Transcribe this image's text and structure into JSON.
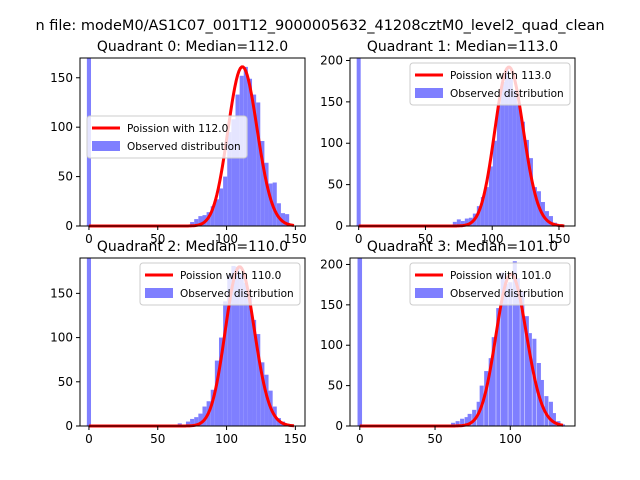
{
  "suptitle": "n file: modeM0/AS1C07_001T12_9000005632_41208cztM0_level2_quad_clean",
  "colors": {
    "poisson": "#ff0000",
    "observed": "#7f7fff",
    "zero_bar": "#8080ff"
  },
  "chart_data": [
    {
      "type": "bar",
      "title": "Quadrant 0: Median=112.0",
      "median": 112,
      "xlim": [
        -6.5,
        157
      ],
      "ylim": [
        0,
        170
      ],
      "xticks": [
        0,
        50,
        100,
        150
      ],
      "yticks": [
        0,
        50,
        100,
        150
      ],
      "legend_loc": "center-left",
      "legend": [
        "Poission with 112.0",
        "Observed distribution"
      ],
      "bin_width": 3,
      "zero_bar": 170,
      "bars": [
        [
          0,
          2
        ],
        [
          54,
          1
        ],
        [
          60,
          1
        ],
        [
          75,
          4
        ],
        [
          78,
          7
        ],
        [
          81,
          10
        ],
        [
          84,
          11
        ],
        [
          87,
          14
        ],
        [
          90,
          20
        ],
        [
          93,
          27
        ],
        [
          96,
          38
        ],
        [
          99,
          50
        ],
        [
          102,
          95
        ],
        [
          105,
          108
        ],
        [
          108,
          133
        ],
        [
          111,
          152
        ],
        [
          114,
          161
        ],
        [
          117,
          149
        ],
        [
          120,
          133
        ],
        [
          123,
          125
        ],
        [
          126,
          86
        ],
        [
          129,
          64
        ],
        [
          132,
          43
        ],
        [
          135,
          44
        ],
        [
          138,
          23
        ],
        [
          141,
          13
        ],
        [
          144,
          12
        ],
        [
          147,
          2
        ]
      ],
      "curve_peak": 161
    },
    {
      "type": "bar",
      "title": "Quadrant 1: Median=113.0",
      "median": 113,
      "xlim": [
        -6.5,
        162
      ],
      "ylim": [
        0,
        203
      ],
      "xticks": [
        0,
        50,
        100,
        150
      ],
      "yticks": [
        0,
        50,
        100,
        150,
        200
      ],
      "legend_loc": "top-right",
      "legend": [
        "Poission with 113.0",
        "Observed distribution"
      ],
      "bin_width": 3,
      "zero_bar": 203,
      "bars": [
        [
          0,
          2
        ],
        [
          57,
          1
        ],
        [
          72,
          5
        ],
        [
          75,
          8
        ],
        [
          78,
          6
        ],
        [
          81,
          9
        ],
        [
          84,
          10
        ],
        [
          87,
          15
        ],
        [
          90,
          24
        ],
        [
          93,
          35
        ],
        [
          96,
          47
        ],
        [
          99,
          72
        ],
        [
          102,
          103
        ],
        [
          105,
          148
        ],
        [
          108,
          174
        ],
        [
          111,
          190
        ],
        [
          114,
          178
        ],
        [
          117,
          164
        ],
        [
          120,
          148
        ],
        [
          123,
          126
        ],
        [
          126,
          104
        ],
        [
          129,
          82
        ],
        [
          132,
          47
        ],
        [
          135,
          42
        ],
        [
          138,
          29
        ],
        [
          141,
          18
        ],
        [
          144,
          12
        ],
        [
          147,
          4
        ]
      ],
      "curve_peak": 192
    },
    {
      "type": "bar",
      "title": "Quadrant 2: Median=110.0",
      "median": 110,
      "xlim": [
        -6.5,
        157
      ],
      "ylim": [
        0,
        190
      ],
      "xticks": [
        0,
        50,
        100,
        150
      ],
      "yticks": [
        0,
        50,
        100,
        150
      ],
      "legend_loc": "top-right",
      "legend": [
        "Poission with 110.0",
        "Observed distribution"
      ],
      "bin_width": 3,
      "zero_bar": 190,
      "bars": [
        [
          0,
          2
        ],
        [
          54,
          1
        ],
        [
          66,
          3
        ],
        [
          72,
          5
        ],
        [
          75,
          8
        ],
        [
          78,
          10
        ],
        [
          81,
          14
        ],
        [
          84,
          22
        ],
        [
          87,
          28
        ],
        [
          90,
          41
        ],
        [
          93,
          74
        ],
        [
          96,
          100
        ],
        [
          99,
          141
        ],
        [
          102,
          171
        ],
        [
          105,
          181
        ],
        [
          108,
          180
        ],
        [
          111,
          172
        ],
        [
          114,
          162
        ],
        [
          117,
          146
        ],
        [
          120,
          120
        ],
        [
          123,
          104
        ],
        [
          126,
          72
        ],
        [
          129,
          58
        ],
        [
          132,
          40
        ],
        [
          135,
          22
        ],
        [
          138,
          9
        ],
        [
          141,
          5
        ],
        [
          144,
          2
        ]
      ],
      "curve_peak": 180
    },
    {
      "type": "bar",
      "title": "Quadrant 3: Median=101.0",
      "median": 101,
      "xlim": [
        -6.5,
        143
      ],
      "ylim": [
        0,
        208
      ],
      "xticks": [
        0,
        50,
        100
      ],
      "yticks": [
        0,
        50,
        100,
        150,
        200
      ],
      "legend_loc": "top-right",
      "legend": [
        "Poission with 101.0",
        "Observed distribution"
      ],
      "bin_width": 2.7,
      "zero_bar": 208,
      "bars": [
        [
          0,
          2
        ],
        [
          51,
          1
        ],
        [
          62,
          4
        ],
        [
          65,
          6
        ],
        [
          68,
          9
        ],
        [
          71,
          11
        ],
        [
          73,
          15
        ],
        [
          76,
          20
        ],
        [
          79,
          30
        ],
        [
          81,
          50
        ],
        [
          84,
          68
        ],
        [
          87,
          84
        ],
        [
          89,
          110
        ],
        [
          92,
          146
        ],
        [
          95,
          190
        ],
        [
          97,
          176
        ],
        [
          100,
          178
        ],
        [
          103,
          204
        ],
        [
          105,
          183
        ],
        [
          108,
          166
        ],
        [
          111,
          136
        ],
        [
          113,
          115
        ],
        [
          116,
          108
        ],
        [
          119,
          78
        ],
        [
          121,
          57
        ],
        [
          124,
          37
        ],
        [
          127,
          30
        ],
        [
          129,
          16
        ],
        [
          132,
          6
        ],
        [
          135,
          2
        ]
      ],
      "curve_peak": 188
    }
  ]
}
